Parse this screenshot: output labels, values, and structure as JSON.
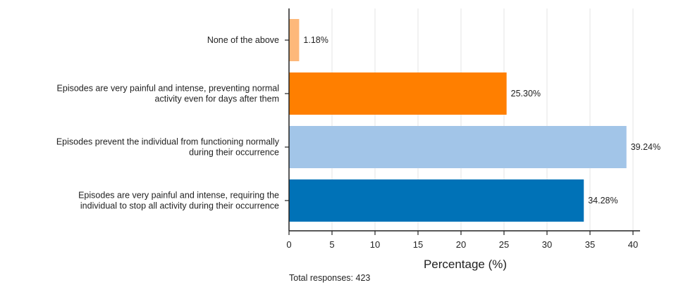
{
  "chart_data": {
    "type": "bar",
    "orientation": "horizontal",
    "categories": [
      [
        "Episodes are very painful and intense, requiring the",
        "individual to stop all activity during their occurrence"
      ],
      [
        "Episodes prevent the individual from functioning normally",
        "during their occurrence"
      ],
      [
        "Episodes are very painful and intense, preventing normal",
        "activity even for days after them"
      ],
      [
        "None of the above"
      ]
    ],
    "values": [
      34.28,
      39.24,
      25.3,
      1.18
    ],
    "value_labels": [
      "34.28%",
      "39.24%",
      "25.30%",
      "1.18%"
    ],
    "colors": [
      "#0072b7",
      "#a2c5e8",
      "#ff7f00",
      "#fdb87a"
    ],
    "xlabel": "Percentage (%)",
    "ylabel": "",
    "title": "",
    "xlim": [
      0,
      41
    ],
    "xticks": [
      0,
      5,
      10,
      15,
      20,
      25,
      30,
      35,
      40
    ],
    "grid": "vertical",
    "footnote": "Total responses: 423"
  }
}
